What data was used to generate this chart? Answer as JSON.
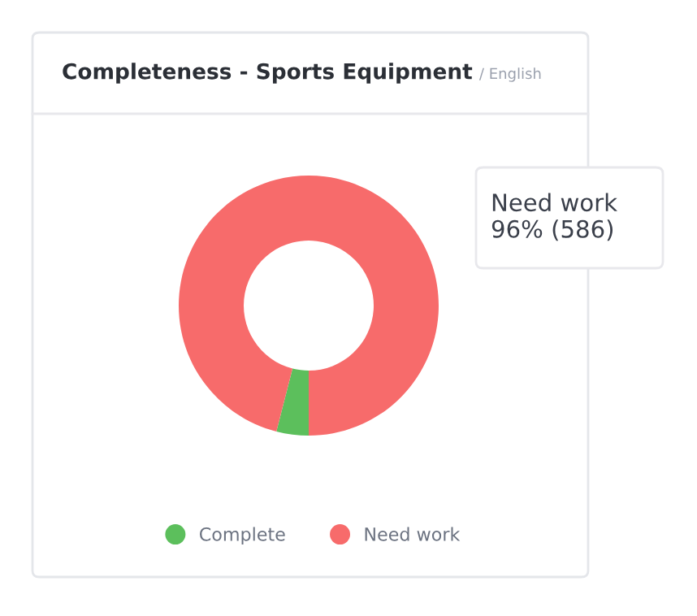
{
  "chart_data": {
    "type": "donut",
    "title": "Completeness - Sports Equipment",
    "subtitle": "/ English",
    "categories": [
      "Complete",
      "Need work"
    ],
    "values": [
      4,
      96
    ],
    "colors": [
      "#5cbf5c",
      "#f76b6b"
    ],
    "annotations": [
      "Need work\n96% (586)"
    ],
    "legend": "bottom"
  }
}
